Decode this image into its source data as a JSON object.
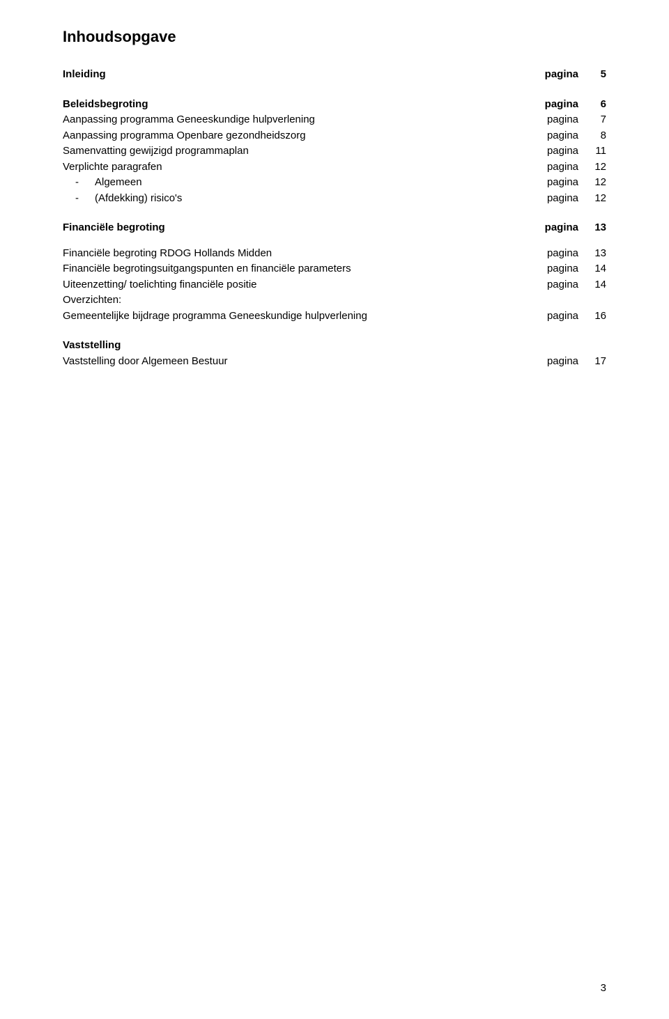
{
  "title": "Inhoudsopgave",
  "pageWord": "pagina",
  "sections": {
    "s0": {
      "label": "Inleiding",
      "num": "5"
    },
    "s1": {
      "label": "Beleidsbegroting",
      "num": "6"
    },
    "s1a": {
      "label": "Aanpassing programma Geneeskundige hulpverlening",
      "num": "7"
    },
    "s1b": {
      "label": "Aanpassing programma Openbare gezondheidszorg",
      "num": "8"
    },
    "s1c": {
      "label": "Samenvatting gewijzigd programmaplan",
      "num": "11"
    },
    "s1d": {
      "label": "Verplichte paragrafen",
      "num": "12"
    },
    "s1d1": {
      "label": "Algemeen",
      "num": "12"
    },
    "s1d2": {
      "label": "(Afdekking) risico's",
      "num": "12"
    },
    "s2": {
      "label": "Financiële begroting",
      "num": "13"
    },
    "s2a": {
      "label": "Financiële begroting RDOG Hollands Midden",
      "num": "13"
    },
    "s2b": {
      "label": "Financiële begrotingsuitgangspunten en financiële parameters",
      "num": "14"
    },
    "s2c": {
      "label": "Uiteenzetting/ toelichting financiële positie",
      "num": "14"
    },
    "s2d": {
      "label": "Overzichten:"
    },
    "s2d1": {
      "label": "Gemeentelijke bijdrage programma Geneeskundige hulpverlening",
      "num": "16"
    },
    "s3": {
      "label": "Vaststelling"
    },
    "s3a": {
      "label": "Vaststelling door Algemeen Bestuur",
      "num": "17"
    }
  },
  "footerPageNum": "3"
}
